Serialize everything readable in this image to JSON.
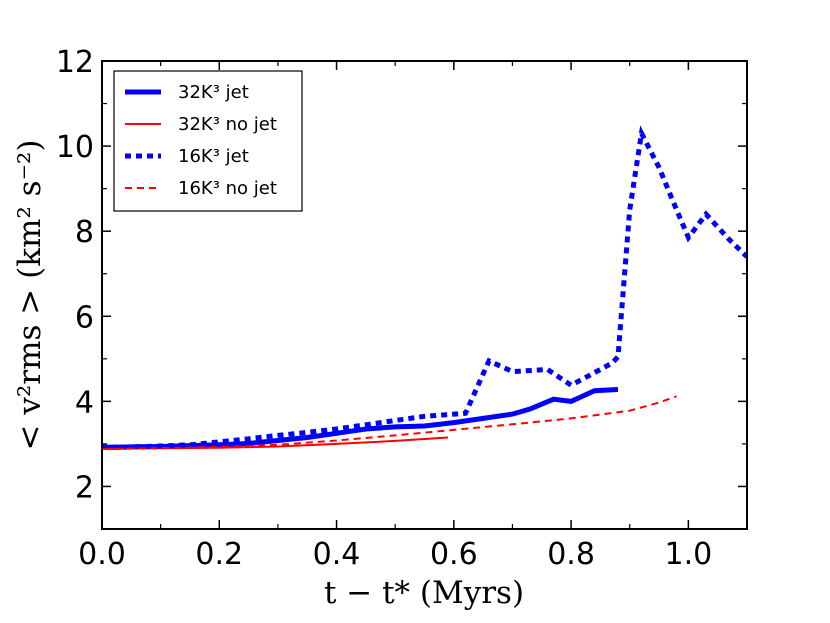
{
  "chart_data": {
    "type": "line",
    "title": "",
    "xlabel": "t − t* (Myrs)",
    "ylabel": "< v²rms > (km² s⁻²)",
    "xlim": [
      0.0,
      1.1
    ],
    "ylim": [
      1.0,
      12.0
    ],
    "x_ticks": [
      "0.0",
      "0.2",
      "0.4",
      "0.6",
      "0.8",
      "1.0"
    ],
    "y_ticks": [
      "2",
      "4",
      "6",
      "8",
      "10",
      "12"
    ],
    "legend_position": "top-left",
    "series": [
      {
        "name": "32K³ jet",
        "color": "#0000ff",
        "style": "solid",
        "weight": "thick",
        "x": [
          0.0,
          0.05,
          0.1,
          0.15,
          0.2,
          0.25,
          0.3,
          0.35,
          0.4,
          0.45,
          0.5,
          0.55,
          0.6,
          0.65,
          0.7,
          0.73,
          0.77,
          0.8,
          0.84,
          0.88
        ],
        "y": [
          2.92,
          2.93,
          2.94,
          2.96,
          2.98,
          3.01,
          3.08,
          3.15,
          3.25,
          3.35,
          3.4,
          3.42,
          3.5,
          3.6,
          3.7,
          3.82,
          4.05,
          4.0,
          4.25,
          4.28
        ]
      },
      {
        "name": "32K³ no jet",
        "color": "#ff0000",
        "style": "solid",
        "weight": "thin",
        "x": [
          0.0,
          0.1,
          0.2,
          0.3,
          0.4,
          0.5,
          0.59
        ],
        "y": [
          2.88,
          2.9,
          2.91,
          2.94,
          3.0,
          3.07,
          3.15
        ]
      },
      {
        "name": "16K³ jet",
        "color": "#0000ff",
        "style": "dotted",
        "weight": "thick",
        "x": [
          0.0,
          0.05,
          0.1,
          0.15,
          0.2,
          0.25,
          0.3,
          0.35,
          0.4,
          0.45,
          0.5,
          0.55,
          0.62,
          0.66,
          0.7,
          0.76,
          0.8,
          0.83,
          0.87,
          0.88,
          0.9,
          0.92,
          0.95,
          0.98,
          1.0,
          1.03,
          1.07,
          1.1
        ],
        "y": [
          2.92,
          2.93,
          2.95,
          2.98,
          3.05,
          3.12,
          3.2,
          3.27,
          3.35,
          3.45,
          3.55,
          3.65,
          3.72,
          4.95,
          4.7,
          4.75,
          4.38,
          4.6,
          4.9,
          5.05,
          8.5,
          10.3,
          9.5,
          8.5,
          7.85,
          8.4,
          7.8,
          7.4
        ]
      },
      {
        "name": "16K³ no jet",
        "color": "#ff0000",
        "style": "dashed",
        "weight": "thin",
        "x": [
          0.0,
          0.1,
          0.2,
          0.3,
          0.4,
          0.5,
          0.6,
          0.7,
          0.8,
          0.9,
          0.95,
          0.98
        ],
        "y": [
          2.88,
          2.9,
          2.93,
          2.98,
          3.08,
          3.2,
          3.33,
          3.46,
          3.6,
          3.78,
          3.97,
          4.12
        ]
      }
    ]
  }
}
